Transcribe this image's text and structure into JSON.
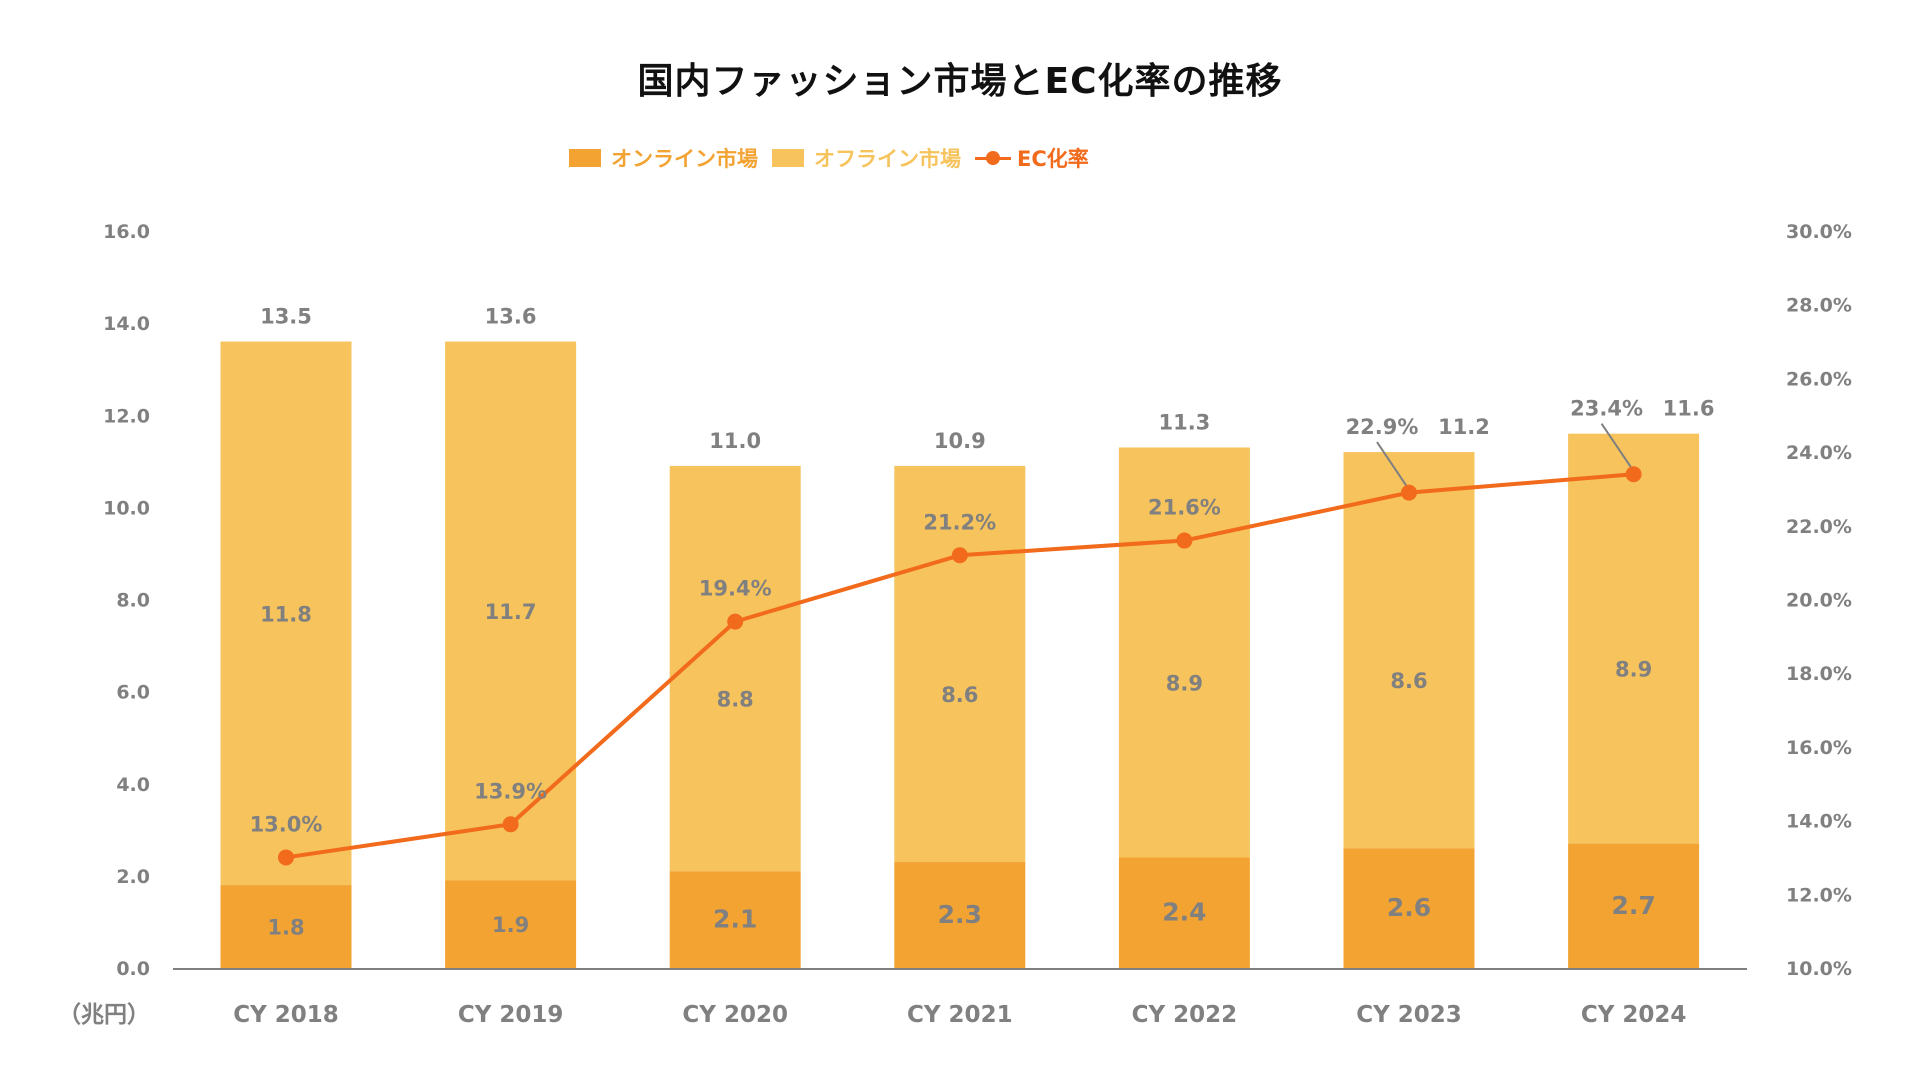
{
  "chart_data": {
    "type": "bar",
    "subtype": "stacked-bar-with-line",
    "title": "国内ファッション市場とEC化率の推移",
    "xlabel": "",
    "ylabel": "（兆円）",
    "categories": [
      "CY 2018",
      "CY 2019",
      "CY 2020",
      "CY 2021",
      "CY 2022",
      "CY 2023",
      "CY 2024"
    ],
    "series": [
      {
        "name": "オンライン市場",
        "type": "bar",
        "axis": "left",
        "color": "#F3A332",
        "values": [
          1.8,
          1.9,
          2.1,
          2.3,
          2.4,
          2.6,
          2.7
        ]
      },
      {
        "name": "オフライン市場",
        "type": "bar",
        "axis": "left",
        "color": "#F6C35C",
        "values": [
          11.8,
          11.7,
          8.8,
          8.6,
          8.9,
          8.6,
          8.9
        ]
      },
      {
        "name": "EC化率",
        "type": "line",
        "axis": "right",
        "color": "#F26A1B",
        "marker": "circle",
        "values": [
          13.0,
          13.9,
          19.4,
          21.2,
          21.6,
          22.9,
          23.4
        ],
        "labels": [
          "13.0%",
          "13.9%",
          "19.4%",
          "21.2%",
          "21.6%",
          "22.9%",
          "23.4%"
        ]
      }
    ],
    "totals": [
      13.5,
      13.6,
      11.0,
      10.9,
      11.3,
      11.2,
      11.6
    ],
    "total_labels": [
      "13.5",
      "13.6",
      "11.0",
      "10.9",
      "11.3",
      "11.2",
      "11.6"
    ],
    "online_labels": [
      "1.8",
      "1.9",
      "2.1",
      "2.3",
      "2.4",
      "2.6",
      "2.7"
    ],
    "offline_labels": [
      "11.8",
      "11.7",
      "8.8",
      "8.6",
      "8.9",
      "8.6",
      "8.9"
    ],
    "ylim": [
      0,
      16
    ],
    "yticks": [
      "0.0",
      "2.0",
      "4.0",
      "6.0",
      "8.0",
      "10.0",
      "12.0",
      "14.0",
      "16.0"
    ],
    "y2lim": [
      10,
      30
    ],
    "y2ticks": [
      "10.0%",
      "12.0%",
      "14.0%",
      "16.0%",
      "18.0%",
      "20.0%",
      "22.0%",
      "24.0%",
      "26.0%",
      "28.0%",
      "30.0%"
    ],
    "grid": false,
    "legend_position": "top-center"
  },
  "legend": {
    "online": "オンライン市場",
    "offline": "オフライン市場",
    "ec_rate": "EC化率"
  },
  "colors": {
    "online": "#F3A332",
    "offline": "#F6C35C",
    "line": "#F26A1B",
    "text": "#808080",
    "axis": "#808080"
  }
}
